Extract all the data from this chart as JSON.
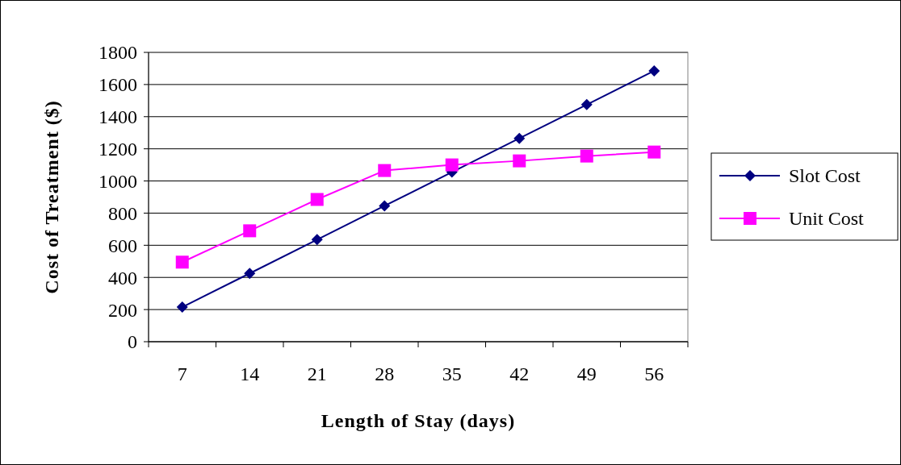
{
  "chart_data": {
    "type": "line",
    "xlabel": "Length of Stay (days)",
    "ylabel": "Cost of Treatment ($)",
    "categories": [
      "7",
      "14",
      "21",
      "28",
      "35",
      "42",
      "49",
      "56"
    ],
    "series": [
      {
        "name": "Slot Cost",
        "color": "#000080",
        "marker": "diamond",
        "values": [
          215,
          425,
          635,
          845,
          1055,
          1265,
          1475,
          1685
        ]
      },
      {
        "name": "Unit Cost",
        "color": "#ff00ff",
        "marker": "square",
        "values": [
          495,
          690,
          885,
          1065,
          1100,
          1125,
          1155,
          1180
        ]
      }
    ],
    "ylim": [
      0,
      1800
    ],
    "yticks": [
      0,
      200,
      400,
      600,
      800,
      1000,
      1200,
      1400,
      1600,
      1800
    ],
    "grid": "y",
    "legend": "right"
  }
}
